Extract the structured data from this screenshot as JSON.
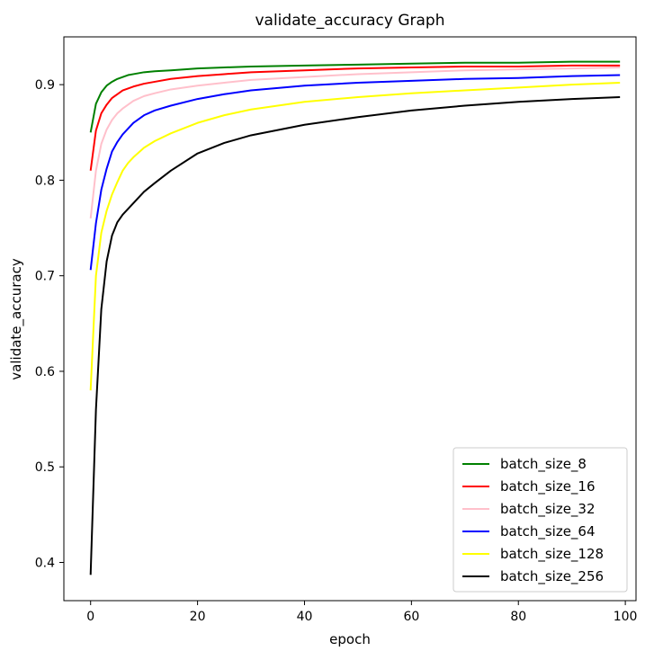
{
  "chart_data": {
    "type": "line",
    "title": "validate_accuracy Graph",
    "xlabel": "epoch",
    "ylabel": "validate_accuracy",
    "xlim": [
      -5,
      102
    ],
    "ylim": [
      0.36,
      0.95
    ],
    "xticks": [
      0,
      20,
      40,
      60,
      80,
      100
    ],
    "xtick_labels": [
      "0",
      "20",
      "40",
      "60",
      "80",
      "100"
    ],
    "yticks": [
      0.4,
      0.5,
      0.6,
      0.7,
      0.8,
      0.9
    ],
    "ytick_labels": [
      "0.4",
      "0.5",
      "0.6",
      "0.7",
      "0.8",
      "0.9"
    ],
    "grid": false,
    "legend_position": "lower-right",
    "series": [
      {
        "name": "batch_size_8",
        "color": "#008000",
        "x": [
          0,
          1,
          2,
          3,
          4,
          5,
          6,
          7,
          8,
          10,
          12,
          15,
          20,
          25,
          30,
          40,
          50,
          60,
          70,
          80,
          90,
          99
        ],
        "values": [
          0.85,
          0.88,
          0.892,
          0.899,
          0.903,
          0.906,
          0.908,
          0.91,
          0.911,
          0.913,
          0.914,
          0.915,
          0.917,
          0.918,
          0.919,
          0.92,
          0.921,
          0.922,
          0.923,
          0.923,
          0.924,
          0.924
        ]
      },
      {
        "name": "batch_size_16",
        "color": "#ff0000",
        "x": [
          0,
          1,
          2,
          3,
          4,
          5,
          6,
          7,
          8,
          10,
          12,
          15,
          20,
          25,
          30,
          40,
          50,
          60,
          70,
          80,
          90,
          99
        ],
        "values": [
          0.81,
          0.852,
          0.87,
          0.879,
          0.886,
          0.89,
          0.894,
          0.896,
          0.898,
          0.901,
          0.903,
          0.906,
          0.909,
          0.911,
          0.913,
          0.915,
          0.917,
          0.918,
          0.919,
          0.919,
          0.92,
          0.92
        ]
      },
      {
        "name": "batch_size_32",
        "color": "#ffc0cb",
        "x": [
          0,
          1,
          2,
          3,
          4,
          5,
          6,
          7,
          8,
          10,
          12,
          15,
          20,
          25,
          30,
          40,
          50,
          60,
          70,
          80,
          90,
          99
        ],
        "values": [
          0.76,
          0.81,
          0.838,
          0.853,
          0.863,
          0.87,
          0.875,
          0.879,
          0.883,
          0.888,
          0.891,
          0.895,
          0.899,
          0.902,
          0.905,
          0.908,
          0.911,
          0.913,
          0.915,
          0.916,
          0.917,
          0.918
        ]
      },
      {
        "name": "batch_size_64",
        "color": "#0000ff",
        "x": [
          0,
          1,
          2,
          3,
          4,
          5,
          6,
          7,
          8,
          10,
          12,
          15,
          20,
          25,
          30,
          40,
          50,
          60,
          70,
          80,
          90,
          99
        ],
        "values": [
          0.706,
          0.755,
          0.79,
          0.812,
          0.83,
          0.84,
          0.848,
          0.854,
          0.86,
          0.868,
          0.873,
          0.878,
          0.885,
          0.89,
          0.894,
          0.899,
          0.902,
          0.904,
          0.906,
          0.907,
          0.909,
          0.91
        ]
      },
      {
        "name": "batch_size_128",
        "color": "#ffff00",
        "x": [
          0,
          1,
          2,
          3,
          4,
          5,
          6,
          7,
          8,
          10,
          12,
          15,
          20,
          25,
          30,
          40,
          50,
          60,
          70,
          80,
          90,
          99
        ],
        "values": [
          0.58,
          0.7,
          0.745,
          0.768,
          0.785,
          0.798,
          0.81,
          0.818,
          0.824,
          0.834,
          0.841,
          0.849,
          0.86,
          0.868,
          0.874,
          0.882,
          0.887,
          0.891,
          0.894,
          0.897,
          0.9,
          0.902
        ]
      },
      {
        "name": "batch_size_256",
        "color": "#000000",
        "x": [
          0,
          1,
          2,
          3,
          4,
          5,
          6,
          7,
          8,
          10,
          12,
          15,
          20,
          25,
          30,
          40,
          50,
          60,
          70,
          80,
          90,
          99
        ],
        "values": [
          0.387,
          0.56,
          0.665,
          0.715,
          0.742,
          0.756,
          0.764,
          0.77,
          0.776,
          0.788,
          0.797,
          0.81,
          0.828,
          0.839,
          0.847,
          0.858,
          0.866,
          0.873,
          0.878,
          0.882,
          0.885,
          0.887
        ]
      }
    ]
  }
}
